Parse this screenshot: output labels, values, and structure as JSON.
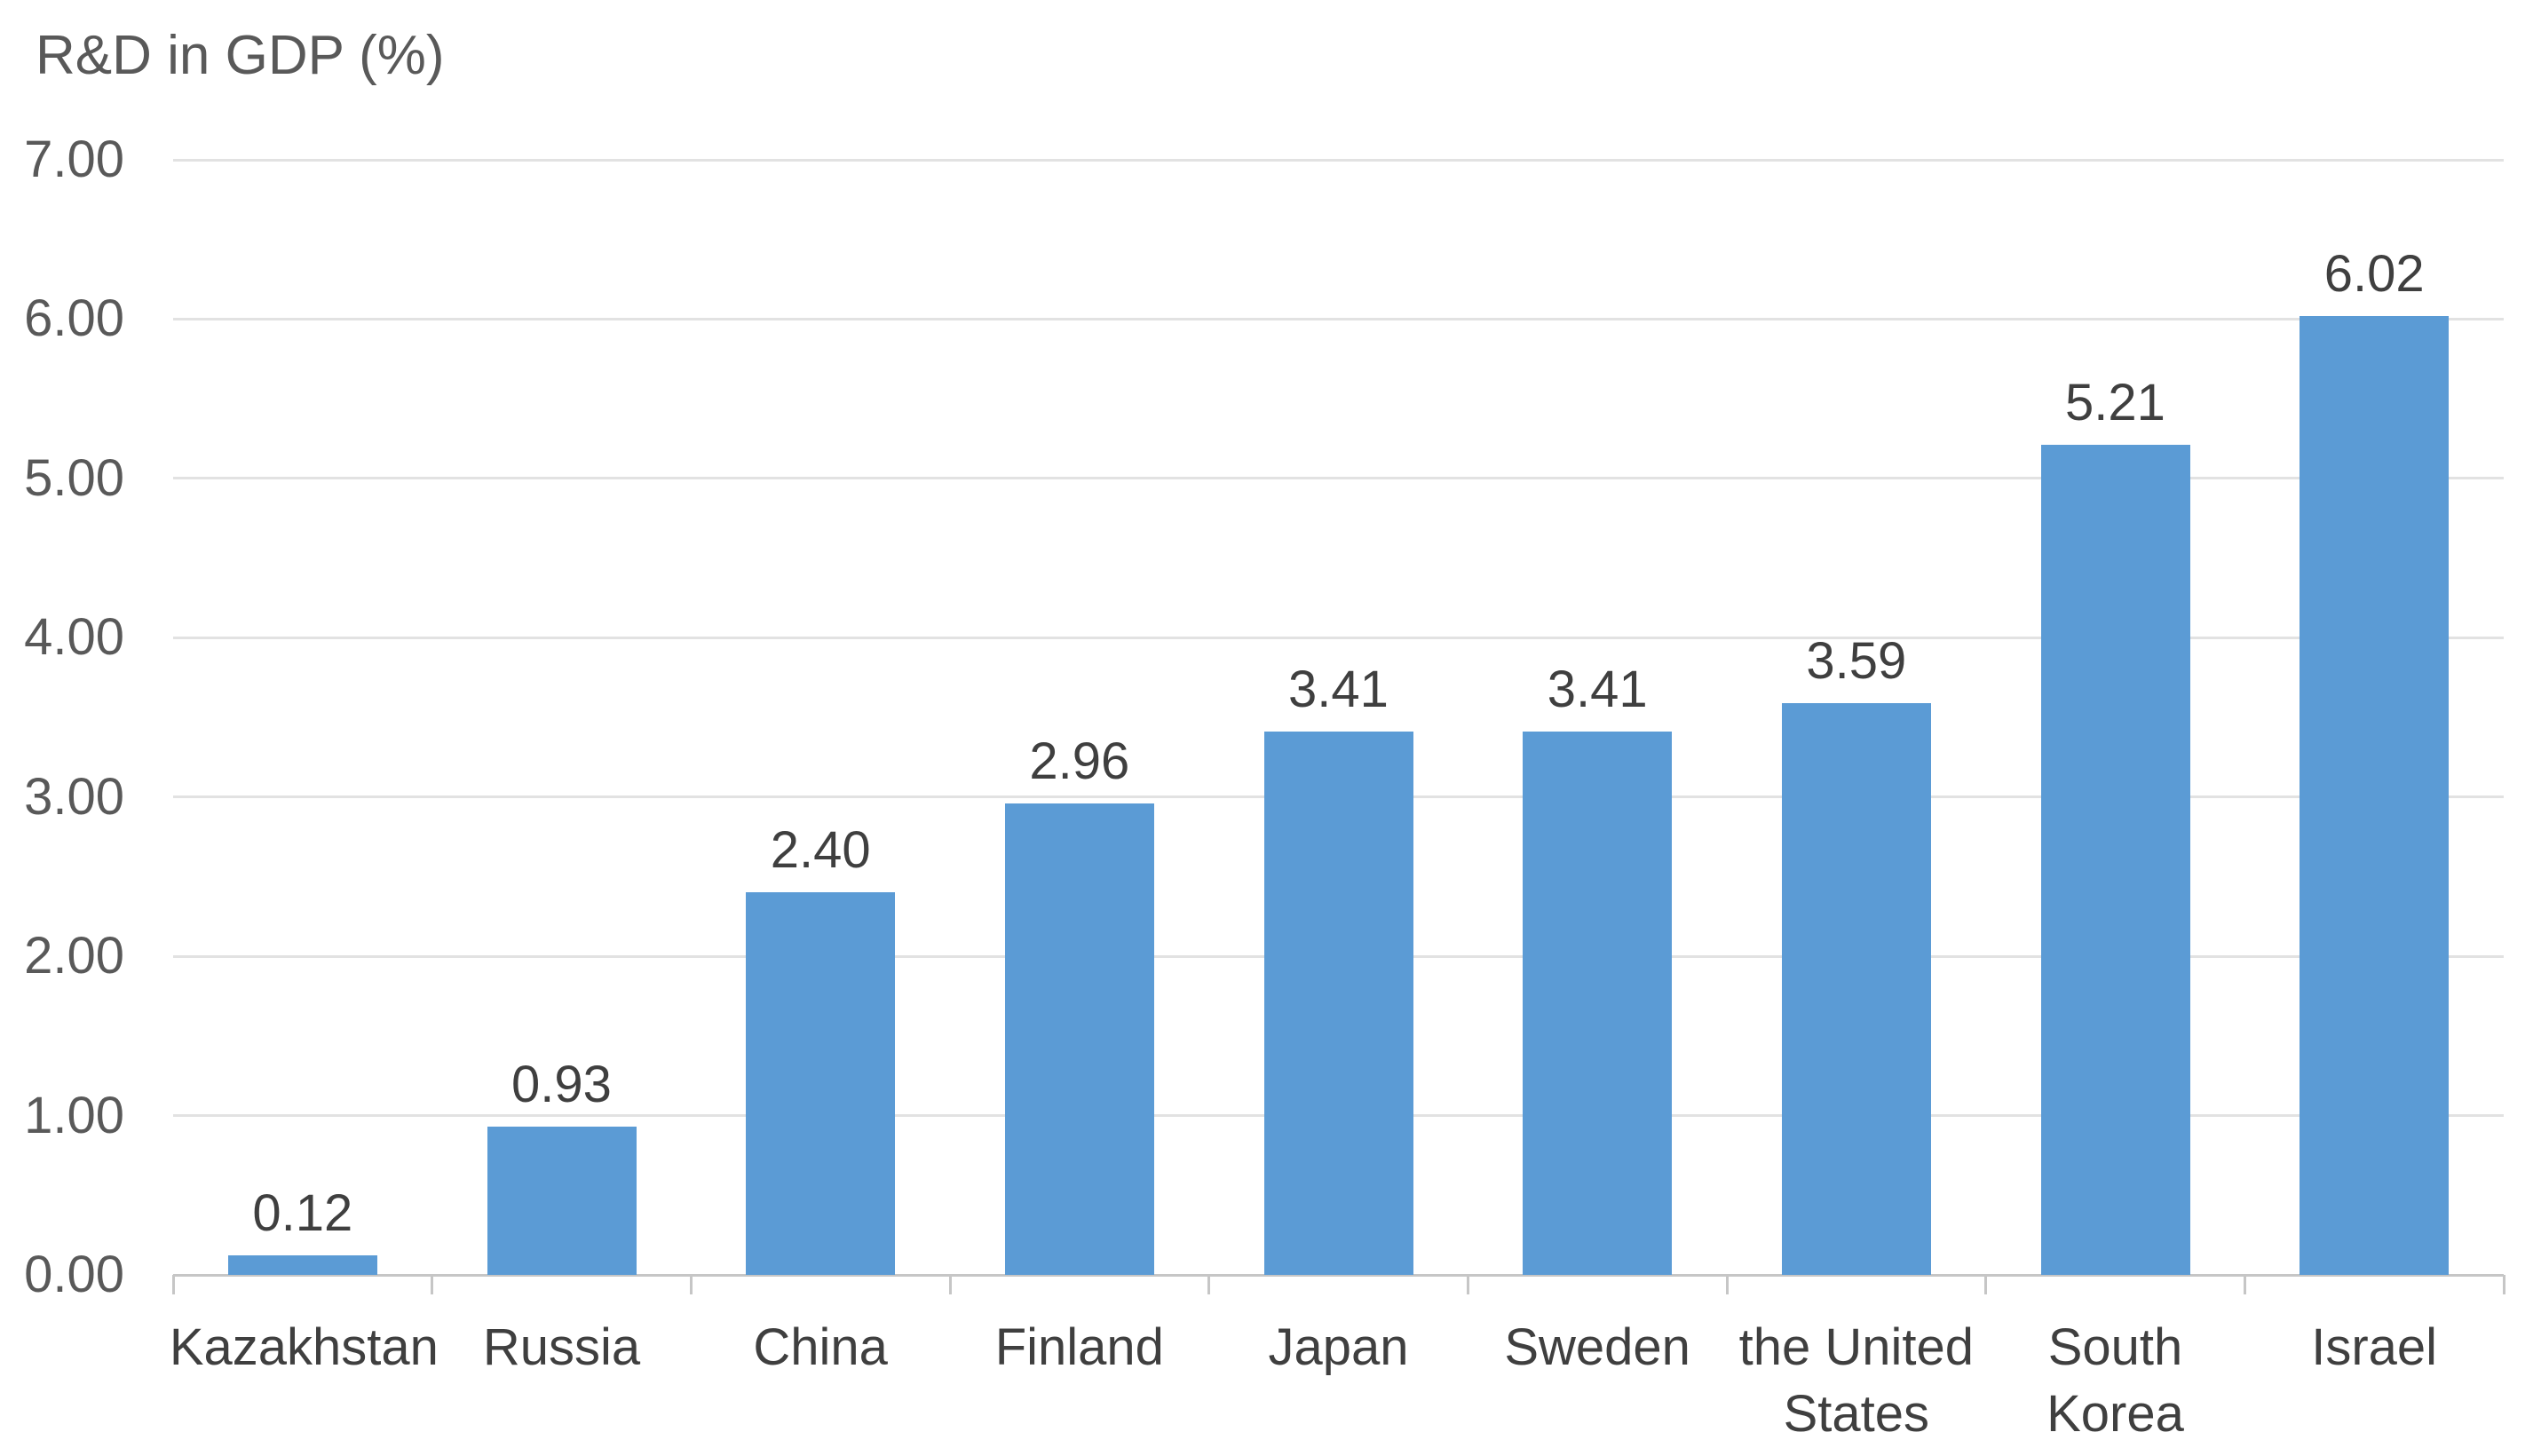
{
  "chart_data": {
    "type": "bar",
    "title": "R&D in GDP (%)",
    "xlabel": "",
    "ylabel": "R&D in GDP (%)",
    "categories": [
      "Kazakhstan",
      "Russia",
      "China",
      "Finland",
      "Japan",
      "Sweden",
      "the United States",
      "South Korea",
      "Israel"
    ],
    "values": [
      0.12,
      0.93,
      2.4,
      2.96,
      3.41,
      3.41,
      3.59,
      5.21,
      6.02
    ],
    "value_labels": [
      "0.12",
      "0.93",
      "2.40",
      "2.96",
      "3.41",
      "3.41",
      "3.59",
      "5.21",
      "6.02"
    ],
    "y_ticks": [
      "7.00",
      "6.00",
      "5.00",
      "4.00",
      "3.00",
      "2.00",
      "1.00",
      "0.00"
    ],
    "ylim": [
      0,
      7
    ],
    "grid": "horizontal",
    "legend": "none",
    "series_count": 1,
    "colors": {
      "bar": "#5B9BD5",
      "axis_text": "#595959",
      "data_label_text": "#3F3F3F",
      "gridline": "#E2E2E2",
      "axis_line": "#C6C6C6",
      "background": "#FFFFFF"
    }
  }
}
